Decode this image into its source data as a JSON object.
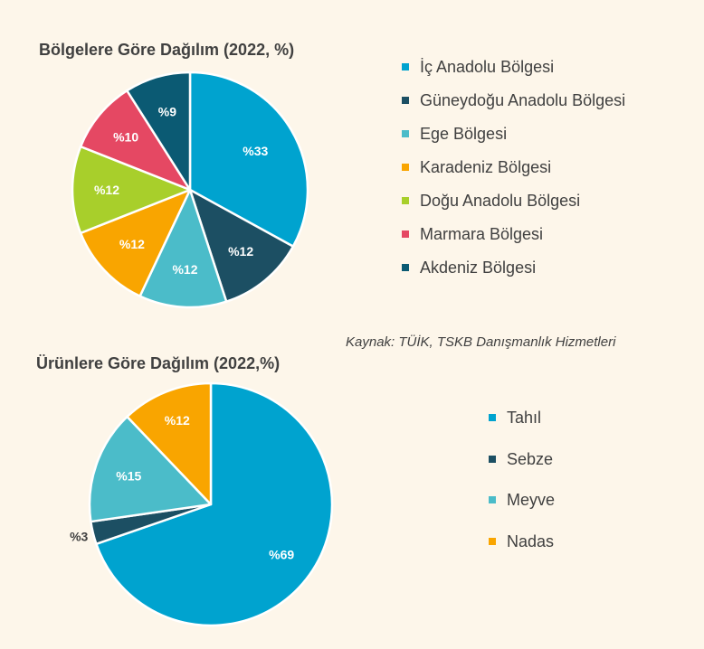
{
  "source_note": "Kaynak: TÜİK, TSKB Danışmanlık Hizmetleri",
  "chart_data": [
    {
      "type": "pie",
      "title": "Bölgelere Göre Dağılım (2022, %)",
      "slices": [
        {
          "name": "İç Anadolu Bölgesi",
          "value": 33,
          "label": "%33",
          "color": "#00a3cf",
          "label_color": "#ffffff"
        },
        {
          "name": "Güneydoğu Anadolu Bölgesi",
          "value": 12,
          "label": "%12",
          "color": "#1c4f63",
          "label_color": "#ffffff"
        },
        {
          "name": "Ege Bölgesi",
          "value": 12,
          "label": "%12",
          "color": "#4bbcc9",
          "label_color": "#ffffff"
        },
        {
          "name": "Karadeniz Bölgesi",
          "value": 12,
          "label": "%12",
          "color": "#f9a500",
          "label_color": "#ffffff"
        },
        {
          "name": "Doğu Anadolu Bölgesi",
          "value": 12,
          "label": "%12",
          "color": "#a8cf2b",
          "label_color": "#ffffff"
        },
        {
          "name": "Marmara Bölgesi",
          "value": 10,
          "label": "%10",
          "color": "#e54863",
          "label_color": "#ffffff"
        },
        {
          "name": "Akdeniz Bölgesi",
          "value": 9,
          "label": "%9",
          "color": "#0b5a73",
          "label_color": "#ffffff"
        }
      ],
      "legend_position": "right"
    },
    {
      "type": "pie",
      "title": "Ürünlere Göre Dağılım (2022,%)",
      "slices": [
        {
          "name": "Tahıl",
          "value": 69,
          "label": "%69",
          "color": "#00a3cf",
          "label_color": "#ffffff"
        },
        {
          "name": "Sebze",
          "value": 3,
          "label": "%3",
          "color": "#1c4f63",
          "label_color": "#404040"
        },
        {
          "name": "Meyve",
          "value": 15,
          "label": "%15",
          "color": "#4bbcc9",
          "label_color": "#ffffff"
        },
        {
          "name": "Nadas",
          "value": 12,
          "label": "%12",
          "color": "#f9a500",
          "label_color": "#ffffff"
        }
      ],
      "legend_position": "right"
    }
  ]
}
